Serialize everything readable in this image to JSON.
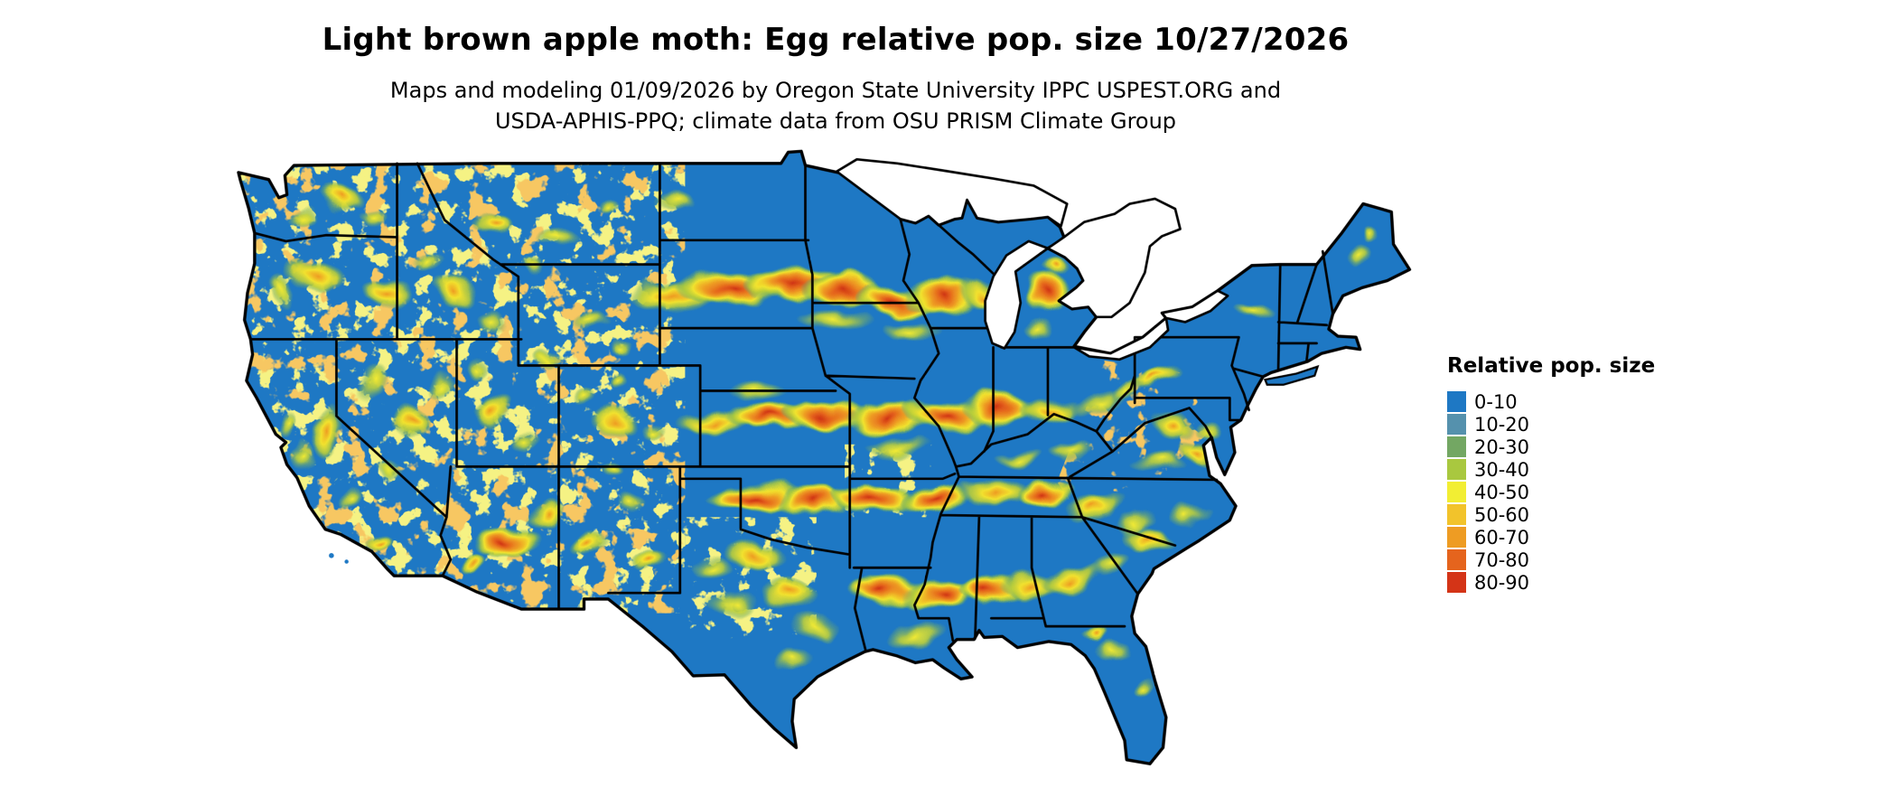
{
  "header": {
    "title": "Light brown apple moth: Egg relative pop. size 10/27/2026",
    "subtitle_line1": "Maps and modeling 01/09/2026 by Oregon State University IPPC USPEST.ORG and",
    "subtitle_line2": "USDA-APHIS-PPQ; climate data from OSU PRISM Climate Group"
  },
  "legend": {
    "title": "Relative pop. size",
    "entries": [
      {
        "label": "0-10",
        "color": "#1e78c4"
      },
      {
        "label": "10-20",
        "color": "#5591ad"
      },
      {
        "label": "20-30",
        "color": "#73a763"
      },
      {
        "label": "30-40",
        "color": "#a9c83f"
      },
      {
        "label": "40-50",
        "color": "#f2ee33"
      },
      {
        "label": "50-60",
        "color": "#f2c32b"
      },
      {
        "label": "60-70",
        "color": "#ee9c23"
      },
      {
        "label": "70-80",
        "color": "#e5641d"
      },
      {
        "label": "80-90",
        "color": "#d43417"
      }
    ]
  },
  "map": {
    "region": "Conterminous United States",
    "base_color": "#1e78c4",
    "border_color": "#000000"
  }
}
